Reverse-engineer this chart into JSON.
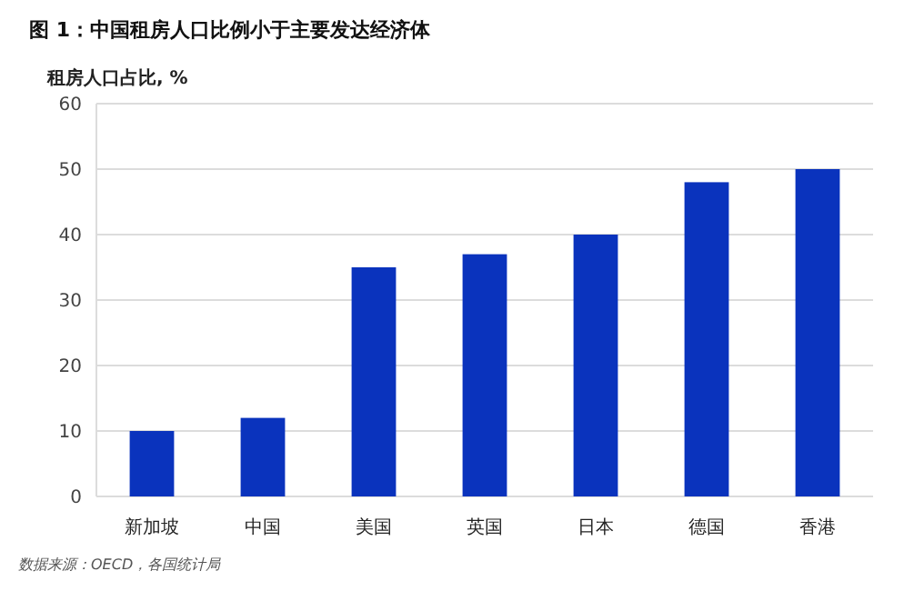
{
  "chart_data": {
    "type": "bar",
    "title": "图 1：中国租房人口比例小于主要发达经济体",
    "ylabel": "租房人口占比, %",
    "categories": [
      "新加坡",
      "中国",
      "美国",
      "英国",
      "日本",
      "德国",
      "香港"
    ],
    "values": [
      10,
      12,
      35,
      37,
      40,
      48,
      50
    ],
    "color": "#0a33bd",
    "ylim": [
      0,
      60
    ],
    "yticks": [
      0,
      10,
      20,
      30,
      40,
      50,
      60
    ],
    "grid": "y",
    "annotations": [
      "数据来源：OECD，各国统计局"
    ]
  }
}
